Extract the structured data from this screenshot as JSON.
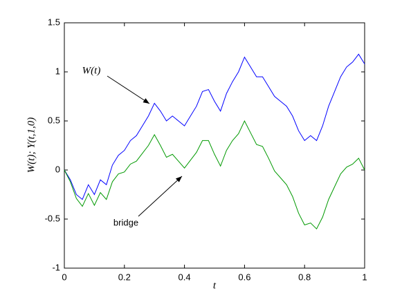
{
  "chart_data": {
    "type": "line",
    "xlabel": "t",
    "ylabel": "W(t); Y(t,1,0)",
    "annotations": [
      "W(t)",
      "bridge"
    ],
    "x": [
      0,
      0.02,
      0.04,
      0.06,
      0.08,
      0.1,
      0.12,
      0.14,
      0.16,
      0.18,
      0.2,
      0.22,
      0.24,
      0.26,
      0.28,
      0.3,
      0.32,
      0.34,
      0.36,
      0.38,
      0.4,
      0.42,
      0.44,
      0.46,
      0.48,
      0.5,
      0.52,
      0.54,
      0.56,
      0.58,
      0.6,
      0.62,
      0.64,
      0.66,
      0.68,
      0.7,
      0.72,
      0.74,
      0.76,
      0.78,
      0.8,
      0.82,
      0.84,
      0.86,
      0.88,
      0.9,
      0.92,
      0.94,
      0.96,
      0.98,
      1
    ],
    "series": [
      {
        "color": "#0000ff",
        "values": [
          0,
          -0.1,
          -0.25,
          -0.3,
          -0.15,
          -0.25,
          -0.1,
          -0.15,
          0.05,
          0.15,
          0.2,
          0.3,
          0.35,
          0.45,
          0.55,
          0.68,
          0.6,
          0.5,
          0.55,
          0.5,
          0.45,
          0.55,
          0.65,
          0.8,
          0.82,
          0.7,
          0.6,
          0.78,
          0.9,
          1.0,
          1.15,
          1.05,
          0.95,
          0.95,
          0.85,
          0.75,
          0.7,
          0.65,
          0.55,
          0.4,
          0.3,
          0.35,
          0.3,
          0.45,
          0.65,
          0.8,
          0.95,
          1.05,
          1.1,
          1.18,
          1.08
        ]
      },
      {
        "color": "#009900",
        "values": [
          0,
          -0.12,
          -0.29,
          -0.37,
          -0.24,
          -0.36,
          -0.23,
          -0.3,
          -0.12,
          -0.04,
          -0.02,
          0.06,
          0.09,
          0.17,
          0.25,
          0.36,
          0.25,
          0.13,
          0.16,
          0.09,
          0.02,
          0.1,
          0.18,
          0.3,
          0.3,
          0.16,
          0.04,
          0.2,
          0.3,
          0.37,
          0.5,
          0.38,
          0.26,
          0.24,
          0.12,
          -0.01,
          -0.08,
          -0.15,
          -0.27,
          -0.44,
          -0.56,
          -0.54,
          -0.6,
          -0.48,
          -0.3,
          -0.17,
          -0.04,
          0.03,
          0.06,
          0.12,
          0
        ]
      }
    ],
    "xlim": [
      0,
      1
    ],
    "xticks": [
      0,
      0.2,
      0.4,
      0.6,
      0.8,
      1
    ],
    "ylim": [
      -1,
      1.5
    ],
    "yticks": [
      -1,
      -0.5,
      0,
      0.5,
      1,
      1.5
    ]
  }
}
